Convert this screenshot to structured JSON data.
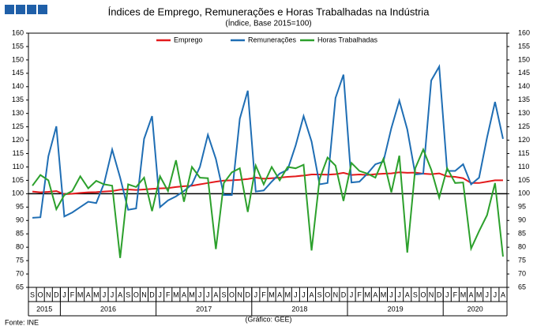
{
  "chart_data": {
    "type": "line",
    "title": "Índices de Emprego, Remunerações e Horas Trabalhadas na Indústria",
    "subtitle": "(Índice, Base 2015=100)",
    "source": "Fonte: INE",
    "credit": "(Gráfico: GEE)",
    "categories": [
      "S",
      "O",
      "N",
      "D",
      "J",
      "F",
      "M",
      "A",
      "M",
      "J",
      "J",
      "A",
      "S",
      "O",
      "N",
      "D",
      "J",
      "F",
      "M",
      "A",
      "M",
      "J",
      "J",
      "A",
      "S",
      "O",
      "N",
      "D",
      "J",
      "F",
      "M",
      "A",
      "M",
      "J",
      "J",
      "A",
      "S",
      "O",
      "N",
      "D",
      "J",
      "F",
      "M",
      "A",
      "M",
      "J",
      "J",
      "A",
      "S",
      "O",
      "N",
      "D",
      "J",
      "F",
      "M",
      "A",
      "M",
      "J",
      "J",
      "A"
    ],
    "category_years": [
      "2015",
      "2015",
      "2015",
      "2015",
      "2016",
      "2016",
      "2016",
      "2016",
      "2016",
      "2016",
      "2016",
      "2016",
      "2016",
      "2016",
      "2016",
      "2016",
      "2017",
      "2017",
      "2017",
      "2017",
      "2017",
      "2017",
      "2017",
      "2017",
      "2017",
      "2017",
      "2017",
      "2017",
      "2018",
      "2018",
      "2018",
      "2018",
      "2018",
      "2018",
      "2018",
      "2018",
      "2018",
      "2018",
      "2018",
      "2018",
      "2019",
      "2019",
      "2019",
      "2019",
      "2019",
      "2019",
      "2019",
      "2019",
      "2019",
      "2019",
      "2019",
      "2019",
      "2020",
      "2020",
      "2020",
      "2020",
      "2020",
      "2020",
      "2020",
      "2020"
    ],
    "series": [
      {
        "name": "Emprego",
        "color": "#e31a1c",
        "values": [
          100.8,
          100.5,
          100.7,
          101.0,
          99.8,
          100.0,
          100.3,
          100.5,
          100.6,
          100.8,
          101.0,
          101.5,
          101.6,
          101.4,
          101.6,
          101.8,
          102.0,
          102.1,
          102.5,
          102.8,
          103.0,
          103.5,
          104.0,
          104.5,
          104.9,
          105.0,
          105.2,
          105.5,
          106.0,
          105.6,
          105.8,
          106.0,
          106.3,
          106.5,
          106.8,
          107.2,
          107.2,
          107.1,
          107.3,
          107.8,
          107.0,
          107.2,
          107.0,
          107.3,
          107.5,
          107.6,
          108.0,
          107.8,
          107.9,
          107.5,
          107.3,
          107.6,
          106.5,
          106.3,
          105.8,
          104.0,
          104.0,
          104.5,
          105.0,
          105.0
        ]
      },
      {
        "name": "Remunerações",
        "color": "#1f6eb4",
        "values": [
          91,
          91.2,
          114,
          125.2,
          91.5,
          93,
          95,
          97,
          96.5,
          104,
          116.5,
          106,
          94,
          94.5,
          120.5,
          129,
          95,
          97.5,
          99,
          101,
          103.5,
          110,
          122,
          113,
          99.5,
          99.5,
          128,
          138.5,
          100.8,
          101.2,
          104.5,
          107.5,
          109,
          118,
          129,
          119.5,
          103.5,
          104,
          135.8,
          144.5,
          104.2,
          104.5,
          107.5,
          111,
          112,
          124.5,
          134.8,
          124,
          107.2,
          107.5,
          142.3,
          147.5,
          108.5,
          108.5,
          111,
          103.5,
          106,
          121,
          134.3,
          120.5
        ]
      },
      {
        "name": "Horas Trabalhadas",
        "color": "#2ca02c",
        "values": [
          103,
          107,
          105,
          94.2,
          99.5,
          101,
          106.5,
          102,
          104.8,
          103.5,
          103,
          76,
          103.5,
          102.5,
          106,
          93.5,
          106.5,
          101,
          112.5,
          97,
          110,
          106,
          105.8,
          79.3,
          104,
          108,
          109.5,
          93.2,
          110.5,
          103.5,
          110,
          105,
          110,
          109.5,
          110.8,
          78.8,
          105.5,
          113.5,
          110.5,
          97.3,
          111.5,
          108.5,
          107.5,
          106,
          113,
          100.5,
          114.2,
          78,
          109.5,
          116.5,
          109,
          98.5,
          109.5,
          104,
          104.2,
          79.5,
          86,
          92,
          104,
          76.5
        ]
      }
    ],
    "reference_line": 100,
    "ylim": [
      65,
      160
    ],
    "yticks": [
      65,
      70,
      75,
      80,
      85,
      90,
      95,
      100,
      105,
      110,
      115,
      120,
      125,
      130,
      135,
      140,
      145,
      150,
      155,
      160
    ],
    "y2lim": [
      65,
      160
    ],
    "y2ticks": [
      65,
      70,
      75,
      80,
      85,
      90,
      95,
      100,
      105,
      110,
      115,
      120,
      125,
      130,
      135,
      140,
      145,
      150,
      155,
      160
    ],
    "legend": "top"
  }
}
